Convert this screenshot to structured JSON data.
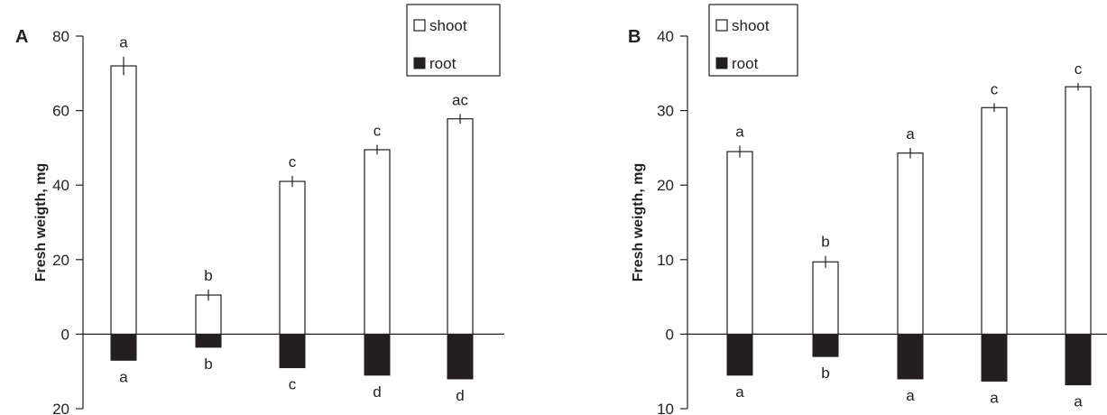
{
  "chart_data": [
    {
      "type": "bar",
      "panel_label": "A",
      "ylabel": "Fresh weigth, mg",
      "ylim": [
        -20,
        80
      ],
      "y_ticks": [
        80,
        60,
        40,
        20,
        0,
        -20
      ],
      "y_tick_labels": [
        "80",
        "60",
        "40",
        "20",
        "0",
        "20"
      ],
      "series": [
        {
          "name": "shoot",
          "color": "#ffffff",
          "values": [
            72,
            10.5,
            41,
            49.5,
            57.8
          ],
          "errors": [
            2.5,
            1.5,
            1.5,
            1.3,
            1.3
          ],
          "letters": [
            "a",
            "b",
            "c",
            "c",
            "ac"
          ]
        },
        {
          "name": "root",
          "color": "#231f20",
          "values": [
            -7,
            -3.5,
            -9,
            -11,
            -12
          ],
          "letters": [
            "a",
            "b",
            "c",
            "d",
            "d"
          ]
        }
      ],
      "legend": {
        "position": "top-right",
        "entries": [
          "shoot",
          "root"
        ]
      }
    },
    {
      "type": "bar",
      "panel_label": "B",
      "ylabel": "Fresh weigth, mg",
      "ylim": [
        -10,
        40
      ],
      "y_ticks": [
        40,
        30,
        20,
        10,
        0,
        -10
      ],
      "y_tick_labels": [
        "40",
        "30",
        "20",
        "10",
        "0",
        "10"
      ],
      "series": [
        {
          "name": "shoot",
          "color": "#ffffff",
          "values": [
            24.5,
            9.7,
            24.3,
            30.4,
            33.2
          ],
          "errors": [
            0.8,
            0.8,
            0.7,
            0.6,
            0.5
          ],
          "letters": [
            "a",
            "b",
            "a",
            "c",
            "c"
          ]
        },
        {
          "name": "root",
          "color": "#231f20",
          "values": [
            -5.5,
            -3,
            -6,
            -6.3,
            -6.8
          ],
          "letters": [
            "a",
            "b",
            "a",
            "a",
            "a"
          ]
        }
      ],
      "legend": {
        "position": "top-left",
        "entries": [
          "shoot",
          "root"
        ]
      }
    }
  ]
}
